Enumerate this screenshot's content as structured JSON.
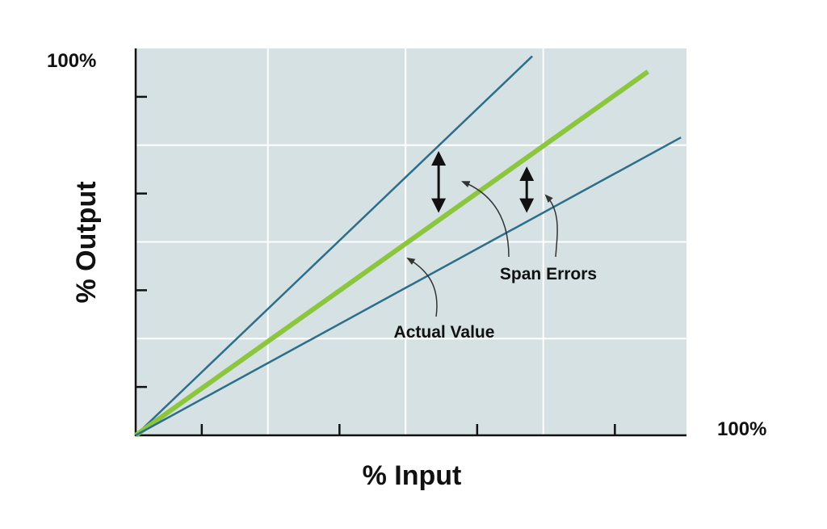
{
  "chart_data": {
    "type": "line",
    "xlabel": "% Input",
    "ylabel": "% Output",
    "x_max_label": "100%",
    "y_max_label": "100%",
    "xlim": [
      0,
      100
    ],
    "ylim": [
      0,
      100
    ],
    "grid": true,
    "colors": {
      "plot_background": "#d5e1e3",
      "grid": "#ffffff",
      "span_error_lines": "#2d6e8a",
      "actual_value_line": "#8cc63f",
      "axis": "#111111"
    },
    "series": [
      {
        "key": "upper",
        "x": [
          0,
          72
        ],
        "y": [
          0,
          98
        ]
      },
      {
        "key": "actual",
        "x": [
          0,
          93
        ],
        "y": [
          0,
          94
        ]
      },
      {
        "key": "lower",
        "x": [
          0,
          99
        ],
        "y": [
          0,
          77
        ]
      }
    ],
    "error_arrows": [
      {
        "x": 55,
        "y_from": 57,
        "y_to": 74
      },
      {
        "x": 71,
        "y_from": 57,
        "y_to": 70
      }
    ],
    "annotations": [
      {
        "text": "Span Errors",
        "x": 85,
        "y": 42,
        "points_to": [
          [
            60,
            66
          ],
          [
            74,
            62
          ]
        ]
      },
      {
        "text": "Actual Value",
        "x": 55,
        "y": 27,
        "points_to": [
          [
            49,
            46
          ]
        ]
      }
    ]
  }
}
